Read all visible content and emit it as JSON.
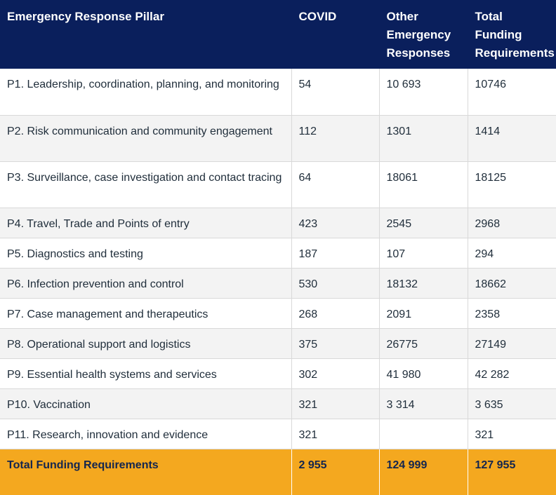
{
  "table": {
    "headers": [
      "Emergency Response Pillar",
      "COVID",
      "Other Emergency Responses",
      "Total Funding Requirements"
    ],
    "rows": [
      {
        "pillar": "P1. Leadership, coordination, planning, and monitoring",
        "covid": "54",
        "other": "10 693",
        "total": "10746"
      },
      {
        "pillar": "P2. Risk communication and community engagement",
        "covid": "112",
        "other": "1301",
        "total": "1414"
      },
      {
        "pillar": "P3. Surveillance, case investigation and contact tracing",
        "covid": "64",
        "other": "18061",
        "total": "18125"
      },
      {
        "pillar": "P4. Travel, Trade and Points of entry",
        "covid": "423",
        "other": "2545",
        "total": "2968"
      },
      {
        "pillar": "P5. Diagnostics and testing",
        "covid": "187",
        "other": "107",
        "total": "294"
      },
      {
        "pillar": "P6. Infection prevention and control",
        "covid": "530",
        "other": "18132",
        "total": "18662"
      },
      {
        "pillar": "P7. Case management and therapeutics",
        "covid": "268",
        "other": "2091",
        "total": "2358"
      },
      {
        "pillar": "P8. Operational support and logistics",
        "covid": "375",
        "other": "26775",
        "total": "27149"
      },
      {
        "pillar": "P9. Essential health systems and services",
        "covid": "302",
        "other": "41 980",
        "total": "42 282"
      },
      {
        "pillar": "P10. Vaccination",
        "covid": "321",
        "other": "3 314",
        "total": "3 635"
      },
      {
        "pillar": "P11. Research, innovation and evidence",
        "covid": "321",
        "other": "",
        "total": "321"
      }
    ],
    "footer": {
      "label": "Total Funding Requirements",
      "covid": "2 955",
      "other": "124 999",
      "total": "127 955"
    }
  }
}
